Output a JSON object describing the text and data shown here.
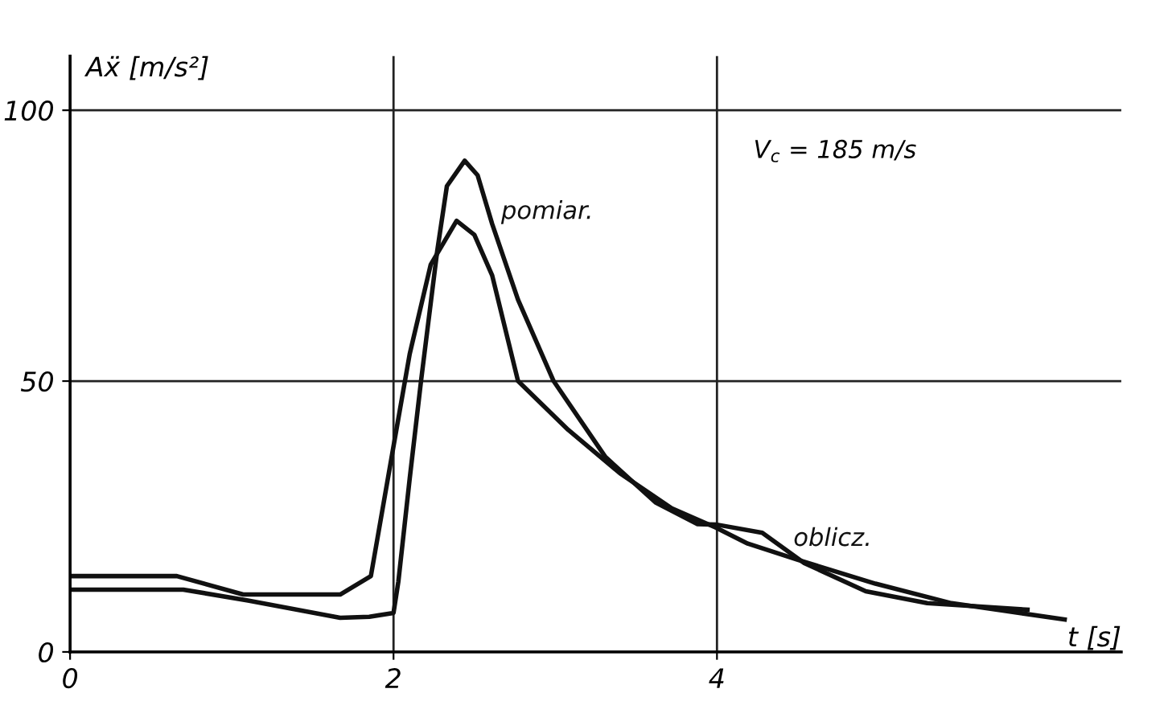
{
  "chart_data": {
    "type": "line",
    "ylabel": "Aẍ [m/s²]",
    "xlabel": "t [s]",
    "annotations": [
      "V$_{c}$ = 185 m/s"
    ],
    "series": [
      {
        "name": "pomiar.",
        "color": "#111111",
        "x": [
          0,
          0.7,
          1.1,
          1.67,
          1.85,
          2.0,
          2.03,
          2.1,
          2.17,
          2.27,
          2.33,
          2.44,
          2.52,
          2.61,
          2.77,
          2.99,
          3.31,
          3.62,
          3.88,
          4.0,
          4.28,
          4.54,
          4.92,
          5.3,
          5.92
        ],
        "values": [
          11.5,
          11.5,
          9.5,
          6.3,
          6.5,
          7.2,
          13,
          32,
          50,
          74,
          86,
          90.7,
          88,
          79,
          65,
          50,
          36,
          27.6,
          23.6,
          23.5,
          22,
          16.4,
          11.2,
          9,
          7.8
        ]
      },
      {
        "name": "oblicz.",
        "color": "#111111",
        "x": [
          0,
          0.66,
          1.07,
          1.67,
          1.86,
          2.0,
          2.1,
          2.23,
          2.39,
          2.5,
          2.61,
          2.77,
          3.08,
          3.4,
          3.72,
          3.99,
          4.19,
          4.5,
          4.98,
          5.45,
          6.15
        ],
        "values": [
          14,
          14,
          10.6,
          10.6,
          14,
          38,
          55,
          71.5,
          79.6,
          77,
          69.5,
          50,
          41,
          33,
          26.5,
          23,
          20,
          17,
          12.6,
          9,
          6
        ]
      }
    ],
    "xlim": [
      0,
      6.5
    ],
    "ylim": [
      0,
      110
    ],
    "xticks": [
      0,
      2,
      4
    ],
    "yticks": [
      0,
      50,
      100
    ],
    "grid": true,
    "marker": "none",
    "line_style": "solid"
  }
}
